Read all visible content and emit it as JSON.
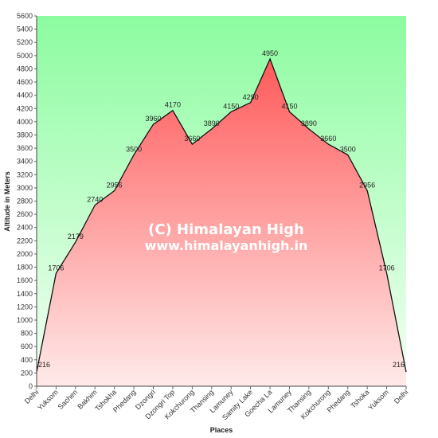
{
  "chart_data": {
    "type": "area",
    "title": "",
    "xlabel": "Places",
    "ylabel": "Altitude in Meters",
    "ylim": [
      0,
      5600
    ],
    "ytick_step": 200,
    "categories": [
      "Delhi",
      "Yuksom",
      "Sachen",
      "Bakhim",
      "Tshokha",
      "Phedang",
      "Dzongri",
      "Dzongri Top",
      "Kokchurong",
      "Thansing",
      "Lamuney",
      "Samity Lake",
      "Goecha La",
      "Lamuney",
      "Thansing",
      "Kokchurong",
      "Phedang",
      "Tshoka",
      "Yuksom",
      "Delhi"
    ],
    "values": [
      216,
      1706,
      2179,
      2740,
      2956,
      3500,
      3960,
      4170,
      3660,
      3890,
      4150,
      4290,
      4950,
      4150,
      3890,
      3660,
      3500,
      2956,
      1706,
      216
    ],
    "series": [
      {
        "values": [
          216,
          1706,
          2179,
          2740,
          2956,
          3500,
          3960,
          4170,
          3660,
          3890,
          4150,
          4290,
          4950,
          4150,
          3890,
          3660,
          3500,
          2956,
          1706,
          216
        ]
      }
    ],
    "grid": false,
    "colors": {
      "bg_top": "#8cfca0",
      "bg_bottom": "#f4fff4",
      "area_top": "#ff5a5a",
      "area_bottom": "#ffeaea",
      "line": "#111111"
    }
  },
  "watermark": {
    "line1": "(C) Himalayan High",
    "line2": "www.himalayanhigh.in"
  }
}
